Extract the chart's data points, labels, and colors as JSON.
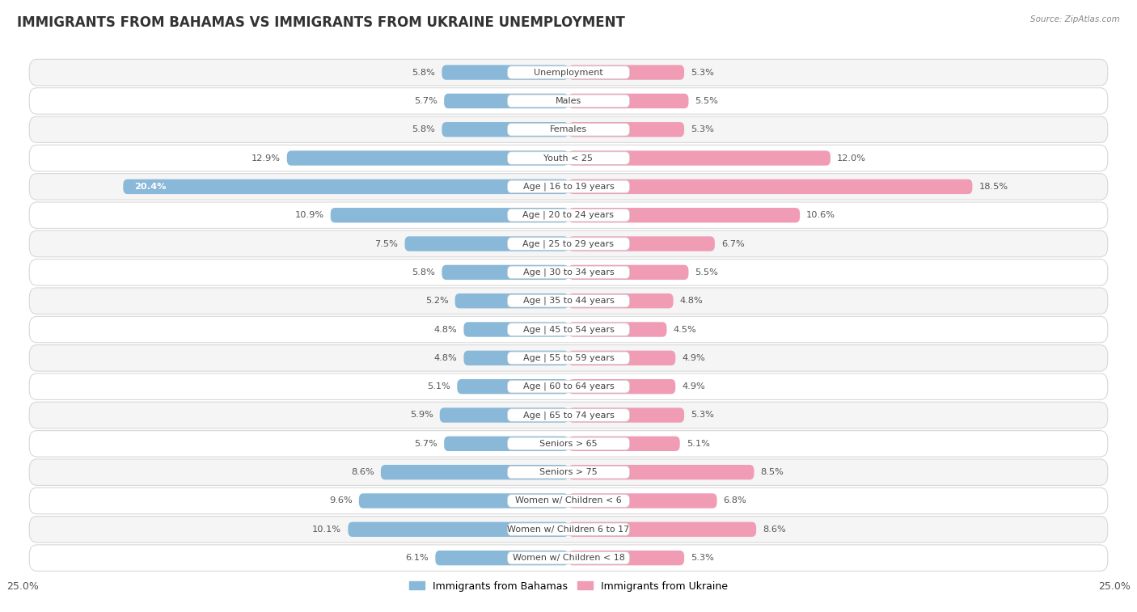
{
  "title": "IMMIGRANTS FROM BAHAMAS VS IMMIGRANTS FROM UKRAINE UNEMPLOYMENT",
  "source": "Source: ZipAtlas.com",
  "categories": [
    "Unemployment",
    "Males",
    "Females",
    "Youth < 25",
    "Age | 16 to 19 years",
    "Age | 20 to 24 years",
    "Age | 25 to 29 years",
    "Age | 30 to 34 years",
    "Age | 35 to 44 years",
    "Age | 45 to 54 years",
    "Age | 55 to 59 years",
    "Age | 60 to 64 years",
    "Age | 65 to 74 years",
    "Seniors > 65",
    "Seniors > 75",
    "Women w/ Children < 6",
    "Women w/ Children 6 to 17",
    "Women w/ Children < 18"
  ],
  "bahamas_values": [
    5.8,
    5.7,
    5.8,
    12.9,
    20.4,
    10.9,
    7.5,
    5.8,
    5.2,
    4.8,
    4.8,
    5.1,
    5.9,
    5.7,
    8.6,
    9.6,
    10.1,
    6.1
  ],
  "ukraine_values": [
    5.3,
    5.5,
    5.3,
    12.0,
    18.5,
    10.6,
    6.7,
    5.5,
    4.8,
    4.5,
    4.9,
    4.9,
    5.3,
    5.1,
    8.5,
    6.8,
    8.6,
    5.3
  ],
  "bahamas_color": "#89b8d9",
  "ukraine_color": "#f09cb5",
  "bahamas_color_dark": "#5a9ec8",
  "ukraine_color_dark": "#e06090",
  "axis_limit": 25.0,
  "bar_height": 0.52,
  "label_fontsize": 8.2,
  "category_fontsize": 8.0,
  "title_fontsize": 12,
  "bg_color": "#ffffff",
  "row_color_odd": "#f5f5f5",
  "row_color_even": "#ffffff",
  "row_border_color": "#d8d8d8",
  "legend_bahamas": "Immigrants from Bahamas",
  "legend_ukraine": "Immigrants from Ukraine"
}
